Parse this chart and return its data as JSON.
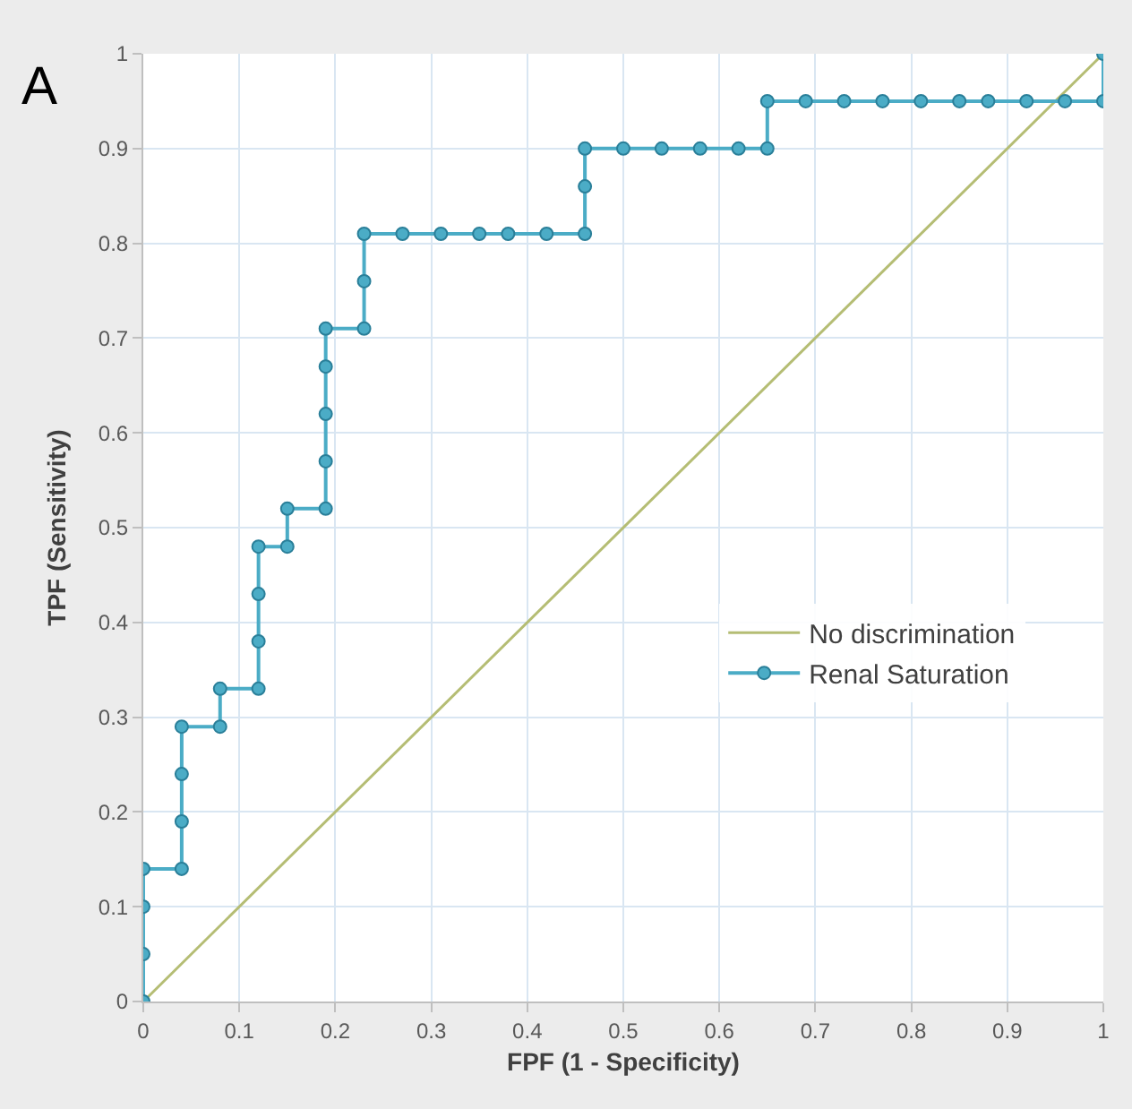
{
  "chart_data": {
    "type": "line",
    "xlabel": "FPF (1 - Specificity)",
    "ylabel": "TPF (Sensitivity)",
    "annotations": [
      "A"
    ],
    "xlim": [
      0,
      1
    ],
    "ylim": [
      0,
      1
    ],
    "xticks": [
      0,
      0.1,
      0.2,
      0.3,
      0.4,
      0.5,
      0.6,
      0.7,
      0.8,
      0.9,
      1
    ],
    "yticks": [
      0,
      0.1,
      0.2,
      0.3,
      0.4,
      0.5,
      0.6,
      0.7,
      0.8,
      0.9,
      1
    ],
    "grid": true,
    "legend": "right",
    "line_style": "solid",
    "series": [
      {
        "name": "No discrimination",
        "color": "#b5bd74",
        "marker": "none",
        "x": [
          0,
          1
        ],
        "values": [
          0,
          1
        ]
      },
      {
        "name": "Renal Saturation",
        "color": "#4bacc6",
        "marker": "circle",
        "x": [
          0,
          0,
          0,
          0,
          0.04,
          0.04,
          0.04,
          0.04,
          0.08,
          0.08,
          0.12,
          0.12,
          0.12,
          0.12,
          0.15,
          0.15,
          0.19,
          0.19,
          0.19,
          0.19,
          0.19,
          0.23,
          0.23,
          0.23,
          0.27,
          0.31,
          0.35,
          0.38,
          0.42,
          0.46,
          0.46,
          0.46,
          0.5,
          0.54,
          0.58,
          0.62,
          0.65,
          0.65,
          0.69,
          0.73,
          0.77,
          0.81,
          0.85,
          0.88,
          0.92,
          0.96,
          1,
          1
        ],
        "values": [
          0,
          0.05,
          0.1,
          0.14,
          0.14,
          0.19,
          0.24,
          0.29,
          0.29,
          0.33,
          0.33,
          0.38,
          0.43,
          0.48,
          0.48,
          0.52,
          0.52,
          0.57,
          0.62,
          0.67,
          0.71,
          0.71,
          0.76,
          0.81,
          0.81,
          0.81,
          0.81,
          0.81,
          0.81,
          0.81,
          0.86,
          0.9,
          0.9,
          0.9,
          0.9,
          0.9,
          0.9,
          0.95,
          0.95,
          0.95,
          0.95,
          0.95,
          0.95,
          0.95,
          0.95,
          0.95,
          0.95,
          1
        ]
      }
    ]
  }
}
